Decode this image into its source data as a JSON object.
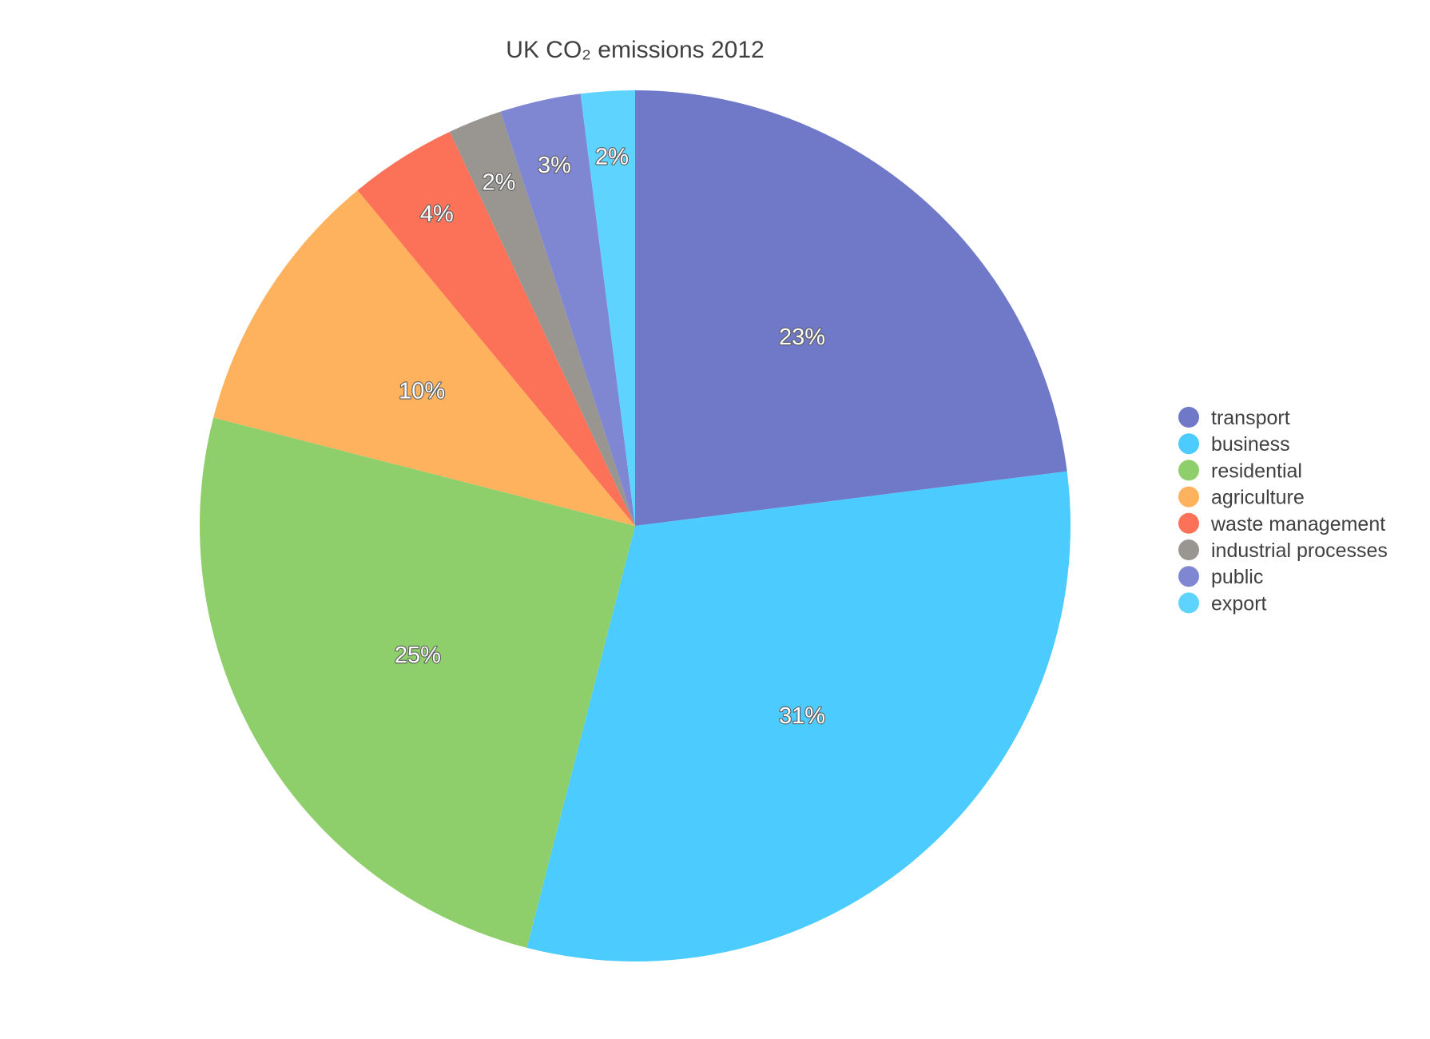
{
  "chart_data": {
    "type": "pie",
    "title": "UK CO₂ emissions 2012",
    "unit": "%",
    "legend_position": "right",
    "start_angle_deg": 0,
    "direction": "clockwise",
    "slices": [
      {
        "name": "transport",
        "value": 23,
        "label": "23%",
        "color": "#6f79c8"
      },
      {
        "name": "business",
        "value": 31,
        "label": "31%",
        "color": "#4ccbfe"
      },
      {
        "name": "residential",
        "value": 25,
        "label": "25%",
        "color": "#8ecf6b"
      },
      {
        "name": "agriculture",
        "value": 10,
        "label": "10%",
        "color": "#feb25e"
      },
      {
        "name": "waste management",
        "value": 4,
        "label": "4%",
        "color": "#fb7259"
      },
      {
        "name": "industrial processes",
        "value": 2,
        "label": "2%",
        "color": "#999590"
      },
      {
        "name": "public",
        "value": 3,
        "label": "3%",
        "color": "#7f86d2"
      },
      {
        "name": "export",
        "value": 2,
        "label": "2%",
        "color": "#5ed3fe"
      }
    ]
  }
}
